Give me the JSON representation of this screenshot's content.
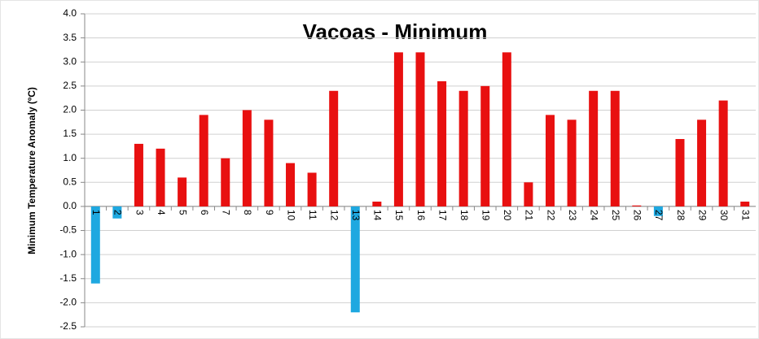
{
  "chart_data": {
    "type": "bar",
    "title": "Vacoas - Minimum",
    "y_label": "Minimum Temperature Anomaly (ºC)",
    "categories": [
      "1",
      "2",
      "3",
      "4",
      "5",
      "6",
      "7",
      "8",
      "9",
      "10",
      "11",
      "12",
      "13",
      "14",
      "15",
      "16",
      "17",
      "18",
      "19",
      "20",
      "21",
      "22",
      "23",
      "24",
      "25",
      "26",
      "27",
      "28",
      "29",
      "30",
      "31"
    ],
    "values": [
      -1.6,
      -0.25,
      1.3,
      1.2,
      0.6,
      1.9,
      1.0,
      2.0,
      1.8,
      0.9,
      0.7,
      2.4,
      -2.2,
      0.1,
      3.2,
      3.2,
      2.6,
      2.4,
      2.5,
      3.2,
      0.5,
      1.9,
      1.8,
      2.4,
      2.4,
      0.02,
      -0.2,
      1.4,
      1.8,
      2.2,
      0.1
    ],
    "color": "#e81010",
    "negative_color": "#1ea8e0",
    "ylim": [
      -2.5,
      4.0
    ],
    "yticks": [
      {
        "value": 4.0,
        "label": "4.0"
      },
      {
        "value": 3.5,
        "label": "3.5"
      },
      {
        "value": 3.0,
        "label": "3.0"
      },
      {
        "value": 2.5,
        "label": "2.5"
      },
      {
        "value": 2.0,
        "label": "2.0"
      },
      {
        "value": 1.5,
        "label": "1.5"
      },
      {
        "value": 1.0,
        "label": "1.0"
      },
      {
        "value": 0.5,
        "label": "0.5"
      },
      {
        "value": 0,
        "label": "0.0"
      },
      {
        "value": -0.5,
        "label": "-0.5"
      },
      {
        "value": -1.0,
        "label": "-1.0"
      },
      {
        "value": -1.5,
        "label": "-1.5"
      },
      {
        "value": -2.0,
        "label": "-2.0"
      },
      {
        "value": -2.5,
        "label": "-2.5"
      }
    ],
    "grid": true
  }
}
